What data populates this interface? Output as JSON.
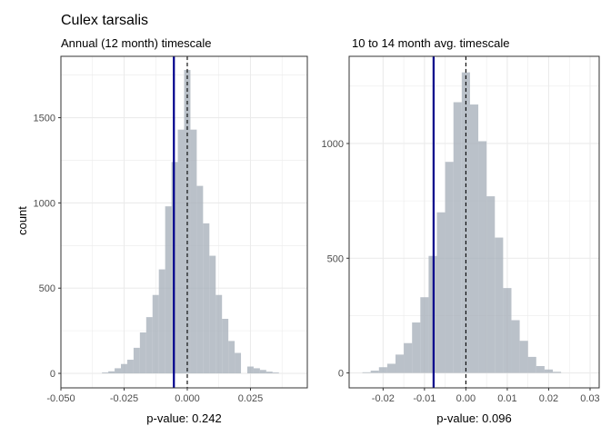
{
  "figure": {
    "title": "Culex tarsalis",
    "y_axis_label": "count"
  },
  "colors": {
    "bar_fill": "#a9b2bb",
    "observed_line": "#00008b",
    "zero_line": "#000000",
    "grid": "#ebebeb",
    "panel_border": "#333333",
    "significant_label": "#8b0000",
    "default_label": "#000000"
  },
  "chart_data": [
    {
      "type": "bar",
      "subtitle": "Annual (12 month) timescale",
      "xlabel": "p-value: 0.242",
      "xlabel_color": "default",
      "xlim": [
        -0.05,
        0.0475
      ],
      "ylim": [
        -85,
        1860
      ],
      "x_ticks": [
        -0.05,
        -0.025,
        0.0,
        0.025
      ],
      "x_tick_labels": [
        "-0.050",
        "-0.025",
        "0.000",
        "0.025"
      ],
      "y_ticks": [
        0,
        500,
        1000,
        1500
      ],
      "y_tick_labels": [
        "0",
        "500",
        "1000",
        "1500"
      ],
      "bin_width": 0.0025,
      "bin_centers": [
        -0.0325,
        -0.03,
        -0.0275,
        -0.025,
        -0.0225,
        -0.02,
        -0.0175,
        -0.015,
        -0.0125,
        -0.01,
        -0.0075,
        -0.005,
        -0.0025,
        0.0,
        0.0025,
        0.005,
        0.0075,
        0.01,
        0.0125,
        0.015,
        0.0175,
        0.02,
        0.025,
        0.0275,
        0.03,
        0.0325,
        0.035
      ],
      "counts": [
        5,
        12,
        30,
        55,
        80,
        150,
        240,
        330,
        460,
        610,
        980,
        1240,
        1430,
        1780,
        1430,
        1100,
        880,
        690,
        460,
        320,
        190,
        120,
        40,
        30,
        20,
        10,
        5
      ],
      "observed_value": -0.0053,
      "reference_value": 0.0
    },
    {
      "type": "bar",
      "subtitle": "10 to 14 month avg. timescale",
      "xlabel": "p-value: 0.096",
      "xlabel_color": "significant",
      "xlim": [
        -0.0282,
        0.0322
      ],
      "ylim": [
        -65,
        1380
      ],
      "x_ticks": [
        -0.02,
        -0.01,
        0.0,
        0.01,
        0.02,
        0.03
      ],
      "x_tick_labels": [
        "-0.02",
        "-0.01",
        "0.00",
        "0.01",
        "0.02",
        "0.03"
      ],
      "y_ticks": [
        0,
        500,
        1000
      ],
      "y_tick_labels": [
        "0",
        "500",
        "1000"
      ],
      "bin_width": 0.002,
      "bin_centers": [
        -0.024,
        -0.022,
        -0.02,
        -0.018,
        -0.016,
        -0.014,
        -0.012,
        -0.01,
        -0.008,
        -0.006,
        -0.004,
        -0.002,
        0.0,
        0.002,
        0.004,
        0.006,
        0.008,
        0.01,
        0.012,
        0.014,
        0.016,
        0.018,
        0.02,
        0.022
      ],
      "counts": [
        3,
        10,
        25,
        40,
        80,
        130,
        220,
        330,
        510,
        700,
        920,
        1180,
        1310,
        1170,
        1010,
        770,
        590,
        370,
        230,
        140,
        70,
        30,
        15,
        5
      ],
      "observed_value": -0.0078,
      "reference_value": 0.0
    }
  ]
}
